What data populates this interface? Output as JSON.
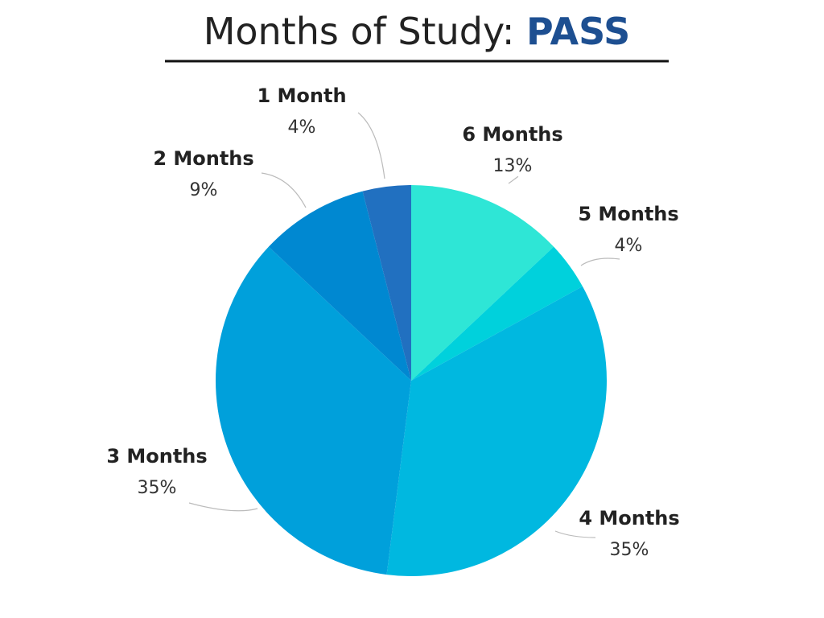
{
  "chart_data": {
    "type": "pie",
    "title": "Months of Study:",
    "title_highlight": "PASS",
    "categories": [
      "6 Months",
      "5 Months",
      "4 Months",
      "3 Months",
      "2 Months",
      "1 Month"
    ],
    "values": [
      13,
      4,
      35,
      35,
      9,
      4
    ],
    "value_labels": [
      "13%",
      "4%",
      "35%",
      "35%",
      "9%",
      "4%"
    ],
    "colors": [
      "#2ee6d6",
      "#00d1dc",
      "#00b8e0",
      "#00a0db",
      "#0088d1",
      "#2170c0"
    ]
  }
}
